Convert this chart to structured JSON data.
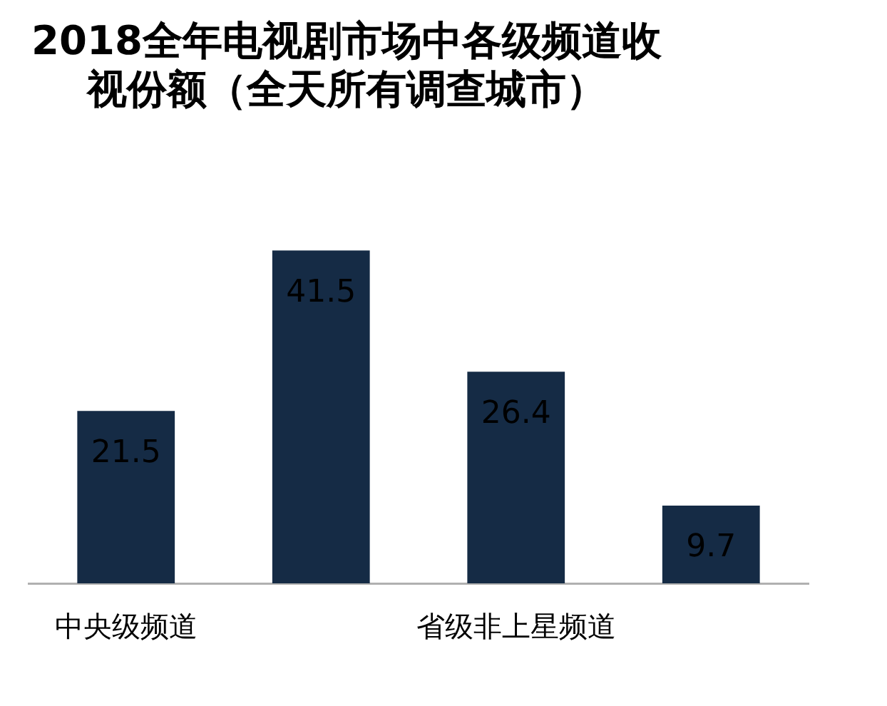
{
  "chart_data": {
    "type": "bar",
    "title": "2018全年电视剧市场中各级频道收视份额（全天所有调查城市）",
    "categories": [
      "中央级频道",
      null,
      "省级非上星频道",
      null
    ],
    "values": [
      21.5,
      41.5,
      26.4,
      9.7
    ],
    "color": "#152b45",
    "tick_labels": "x",
    "data_labels": true
  }
}
